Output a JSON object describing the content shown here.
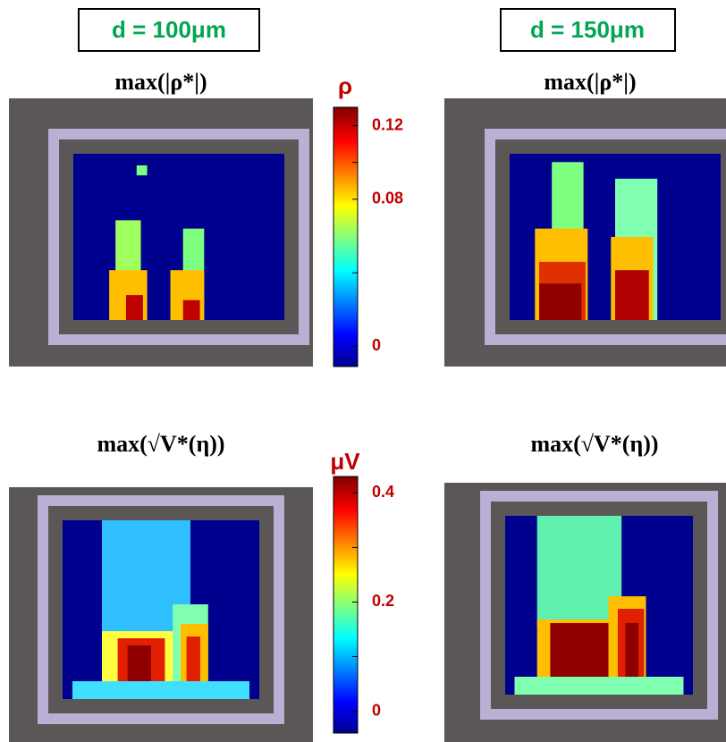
{
  "panels": [
    {
      "label": "d = 100μm",
      "title": "max(|ρ*|)"
    },
    {
      "label": "d = 150μm",
      "title": "max(|ρ*|)"
    },
    {
      "title": "max(√V*(η))"
    },
    {
      "title": "max(√V*(η))"
    }
  ],
  "colorbars": [
    {
      "label": "ρ",
      "lim": [
        -0.011,
        0.13
      ],
      "ticks": [
        0,
        0.08,
        0.12
      ],
      "minor_ticks": [
        0.04,
        0.1
      ]
    },
    {
      "label": "μV",
      "lim": [
        -0.04,
        0.43
      ],
      "ticks": [
        0,
        0.2,
        0.4
      ],
      "minor_ticks": [
        0.1,
        0.3
      ]
    }
  ]
}
